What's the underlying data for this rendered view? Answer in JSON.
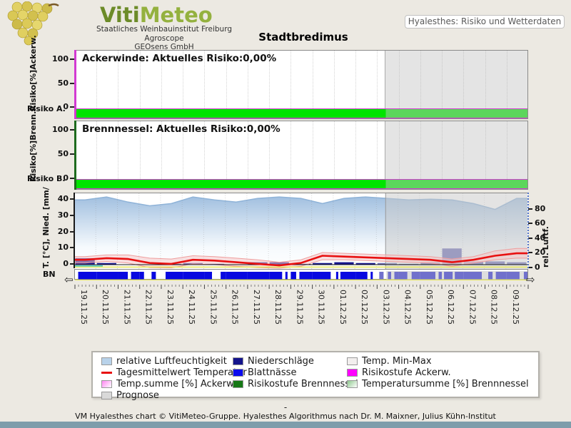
{
  "header": {
    "logo_title_part1": "Viti",
    "logo_title_part2": "Meteo",
    "org_line1": "Staatliches Weinbauinstitut Freiburg",
    "org_line2": "Agroscope",
    "org_line3": "GEOsens GmbH",
    "info_badge": "Hyalesthes: Risiko und Wetterdaten",
    "page_title": "Stadtbredimus"
  },
  "panels": {
    "ackerwinde_bottom_label": "Risiko A.",
    "brennnessel_bottom_label": "Risiko B.",
    "bn_label": "BN",
    "left_arrow": "⇦",
    "right_arrow": "⇨"
  },
  "legend": {
    "items": [
      {
        "label": "relative Luftfeuchtigkeit",
        "swatch": "area",
        "color": "#b8d2ea",
        "col": 1,
        "row": 1
      },
      {
        "label": "Tagesmittelwert Temperatur",
        "swatch": "line",
        "color": "#e81010",
        "col": 1,
        "row": 2
      },
      {
        "label": "Temp.summe [%] Ackerw.",
        "swatch": "gradient",
        "color": "#ff85f2",
        "color2": "#ffffff",
        "col": 1,
        "row": 3
      },
      {
        "label": "Prognose",
        "swatch": "area",
        "color": "#d9d9d9",
        "col": 1,
        "row": 4
      },
      {
        "label": "Niederschläge",
        "swatch": "area",
        "color": "#14148c",
        "col": 2,
        "row": 1
      },
      {
        "label": "Blattnässe",
        "swatch": "area",
        "color": "#0a0aee",
        "col": 2,
        "row": 2
      },
      {
        "label": "Risikostufe Brennnessel",
        "swatch": "area",
        "color": "#167816",
        "col": 2,
        "row": 3
      },
      {
        "label": "Temp. Min-Max",
        "swatch": "area",
        "color": "#f2efee",
        "col": 3,
        "row": 1
      },
      {
        "label": "Risikostufe Ackerw.",
        "swatch": "area",
        "color": "#ff00ff",
        "col": 3,
        "row": 2
      },
      {
        "label": "Temperatursumme [%] Brennnessel",
        "swatch": "gradient",
        "color": "#8ec88e",
        "color2": "#ffffff",
        "col": 3,
        "row": 3
      }
    ]
  },
  "footer": {
    "dash": "-",
    "credit": "VM Hyalesthes chart © VitiMeteo-Gruppe. Hyalesthes Algorithmus nach Dr. M. Maixner, Julius Kühn-Institut"
  },
  "colors": {
    "page_bg": "#ece9e2",
    "logo_green_dark": "#6c8b28",
    "logo_green_light": "#94b13e",
    "badge_text": "#5a5a5a",
    "risk_green": "#00e400",
    "risk_green_prognosis": "#5cd65c",
    "magenta_line": "#d23ad2",
    "axis_green": "#1e6b1e",
    "humidity_top": "#a2c0e0",
    "humidity_bottom": "#f6fafd",
    "temp_red": "#e81010",
    "minmax_pink": "#f6c6c6",
    "minmax_edge": "#ef9e9e",
    "precip_navy": "#16168c",
    "precip_prognosis": "#6868b4",
    "bn_blue": "#0808e0",
    "bn_blue_prognosis": "#7070cc",
    "prognosis_gray": "#c8c8c8",
    "yellow_line": "#e6e655",
    "cyan_line": "#3cc8c8",
    "footer_bar": "#7e9dab"
  },
  "chart_data": [
    {
      "type": "area",
      "name": "Ackerwinde Risiko",
      "annotation": "Ackerwinde: Aktuelles Risiko:0,00%",
      "current_risk": "0,00%",
      "ylabel": "Risiko[%]Ackerw.",
      "yticks": [
        0,
        50,
        100
      ],
      "ylim": [
        0,
        120
      ],
      "x": [
        "19.11.25",
        "20.11.25",
        "21.11.25",
        "22.11.25",
        "23.11.25",
        "24.11.25",
        "25.11.25",
        "26.11.25",
        "27.11.25",
        "28.11.25",
        "29.11.25",
        "30.11.25",
        "01.12.25",
        "02.12.25",
        "03.12.25",
        "04.12.25",
        "05.12.25",
        "06.12.25",
        "07.12.25",
        "08.12.25",
        "09.12.25"
      ],
      "values": [
        0,
        0,
        0,
        0,
        0,
        0,
        0,
        0,
        0,
        0,
        0,
        0,
        0,
        0,
        0,
        0,
        0,
        0,
        0,
        0,
        0
      ],
      "risk_band": "green = Risikostufe 0"
    },
    {
      "type": "area",
      "name": "Brennnessel Risiko",
      "annotation": "Brennnessel: Aktuelles Risiko:0,00%",
      "current_risk": "0,00%",
      "ylabel": "Risiko[%]Brenn.",
      "yticks": [
        0,
        50,
        100
      ],
      "ylim": [
        0,
        120
      ],
      "x": [
        "19.11.25",
        "20.11.25",
        "21.11.25",
        "22.11.25",
        "23.11.25",
        "24.11.25",
        "25.11.25",
        "26.11.25",
        "27.11.25",
        "28.11.25",
        "29.11.25",
        "30.11.25",
        "01.12.25",
        "02.12.25",
        "03.12.25",
        "04.12.25",
        "05.12.25",
        "06.12.25",
        "07.12.25",
        "08.12.25",
        "09.12.25"
      ],
      "values": [
        0,
        0,
        0,
        0,
        0,
        0,
        0,
        0,
        0,
        0,
        0,
        0,
        0,
        0,
        0,
        0,
        0,
        0,
        0,
        0,
        0
      ],
      "risk_band": "green = Risikostufe 0"
    },
    {
      "type": "mixed",
      "name": "Wetterdaten",
      "x": [
        "19.11.25",
        "20.11.25",
        "21.11.25",
        "22.11.25",
        "23.11.25",
        "24.11.25",
        "25.11.25",
        "26.11.25",
        "27.11.25",
        "28.11.25",
        "29.11.25",
        "30.11.25",
        "01.12.25",
        "02.12.25",
        "03.12.25",
        "04.12.25",
        "05.12.25",
        "06.12.25",
        "07.12.25",
        "08.12.25",
        "09.12.25"
      ],
      "left_axis": {
        "label": "T. [°C], Nied. [mm/",
        "ticks": [
          0,
          10,
          20,
          30,
          40
        ],
        "range": [
          -2,
          45
        ]
      },
      "right_axis": {
        "label": "rel. Luftf.",
        "ticks": [
          0,
          20,
          40,
          60,
          80
        ],
        "range": [
          0,
          100
        ]
      },
      "prognosis_start_fraction": 0.687,
      "grid": true,
      "series": [
        {
          "name": "relative Luftfeuchtigkeit",
          "type": "area",
          "axis": "right",
          "unit": "%",
          "values": [
            93,
            97,
            90,
            85,
            88,
            97,
            93,
            90,
            95,
            97,
            95,
            88,
            95,
            97,
            95,
            93,
            94,
            93,
            88,
            80,
            95
          ]
        },
        {
          "name": "Tagesmittelwert Temperatur",
          "type": "line",
          "axis": "left",
          "unit": "°C",
          "values": [
            3,
            4,
            3.5,
            1,
            0.5,
            3,
            2.5,
            1.5,
            0.5,
            -0.5,
            1,
            5.5,
            5,
            4.5,
            4,
            3.5,
            3,
            1.5,
            3,
            5.5,
            7
          ]
        },
        {
          "name": "Temp. Min",
          "type": "band-lower",
          "axis": "left",
          "unit": "°C",
          "values": [
            1,
            2,
            1,
            -1.8,
            -2,
            0.5,
            0,
            -1,
            -1.8,
            -2.2,
            -1,
            3,
            3,
            2.5,
            2,
            1.5,
            1,
            -1,
            1,
            3,
            4
          ]
        },
        {
          "name": "Temp. Max",
          "type": "band-upper",
          "axis": "left",
          "unit": "°C",
          "values": [
            5,
            6,
            6,
            4,
            3.5,
            5.5,
            5,
            4,
            3,
            1.5,
            3,
            7.5,
            7,
            6.5,
            6,
            5.5,
            5,
            3.5,
            5,
            8.5,
            10
          ]
        },
        {
          "name": "Niederschläge",
          "type": "bar",
          "axis": "left",
          "unit": "mm",
          "values": [
            4,
            1,
            0,
            0,
            0.5,
            1,
            0.5,
            0,
            1.5,
            1.5,
            0.5,
            1,
            1.5,
            1,
            1,
            0.5,
            1.5,
            10,
            2,
            2,
            1.5
          ]
        },
        {
          "name": "Blattnässe",
          "type": "wet-segments",
          "segments_per_day": [
            [
              [
                0.15,
                1
              ]
            ],
            [
              [
                0,
                1
              ]
            ],
            [
              [
                0,
                0.45
              ],
              [
                0.6,
                1
              ]
            ],
            [
              [
                0,
                0.2
              ],
              [
                0.55,
                0.75
              ]
            ],
            [
              [
                0.2,
                1
              ]
            ],
            [
              [
                0,
                1
              ]
            ],
            [
              [
                0,
                0.35
              ],
              [
                0.75,
                1
              ]
            ],
            [
              [
                0,
                1
              ]
            ],
            [
              [
                0,
                1
              ]
            ],
            [
              [
                0,
                0.6
              ],
              [
                0.75,
                0.85
              ]
            ],
            [
              [
                0,
                0.25
              ],
              [
                0.4,
                1
              ]
            ],
            [
              [
                0,
                0.85
              ]
            ],
            [
              [
                0.1,
                0.2
              ],
              [
                0.3,
                1
              ]
            ],
            [
              [
                0,
                0.55
              ],
              [
                0.7,
                0.8
              ]
            ],
            [
              [
                0.1,
                0.3
              ],
              [
                0.5,
                0.65
              ],
              [
                0.8,
                1
              ]
            ],
            [
              [
                0,
                0.4
              ],
              [
                0.6,
                1
              ]
            ],
            [
              [
                0,
                0.7
              ],
              [
                0.85,
                1
              ]
            ],
            [
              [
                0.1,
                0.5
              ],
              [
                0.6,
                1
              ]
            ],
            [
              [
                0,
                0.85
              ]
            ],
            [
              [
                0.15,
                0.35
              ],
              [
                0.5,
                1
              ]
            ],
            [
              [
                0,
                0.6
              ],
              [
                0.8,
                1
              ]
            ]
          ]
        }
      ]
    }
  ]
}
